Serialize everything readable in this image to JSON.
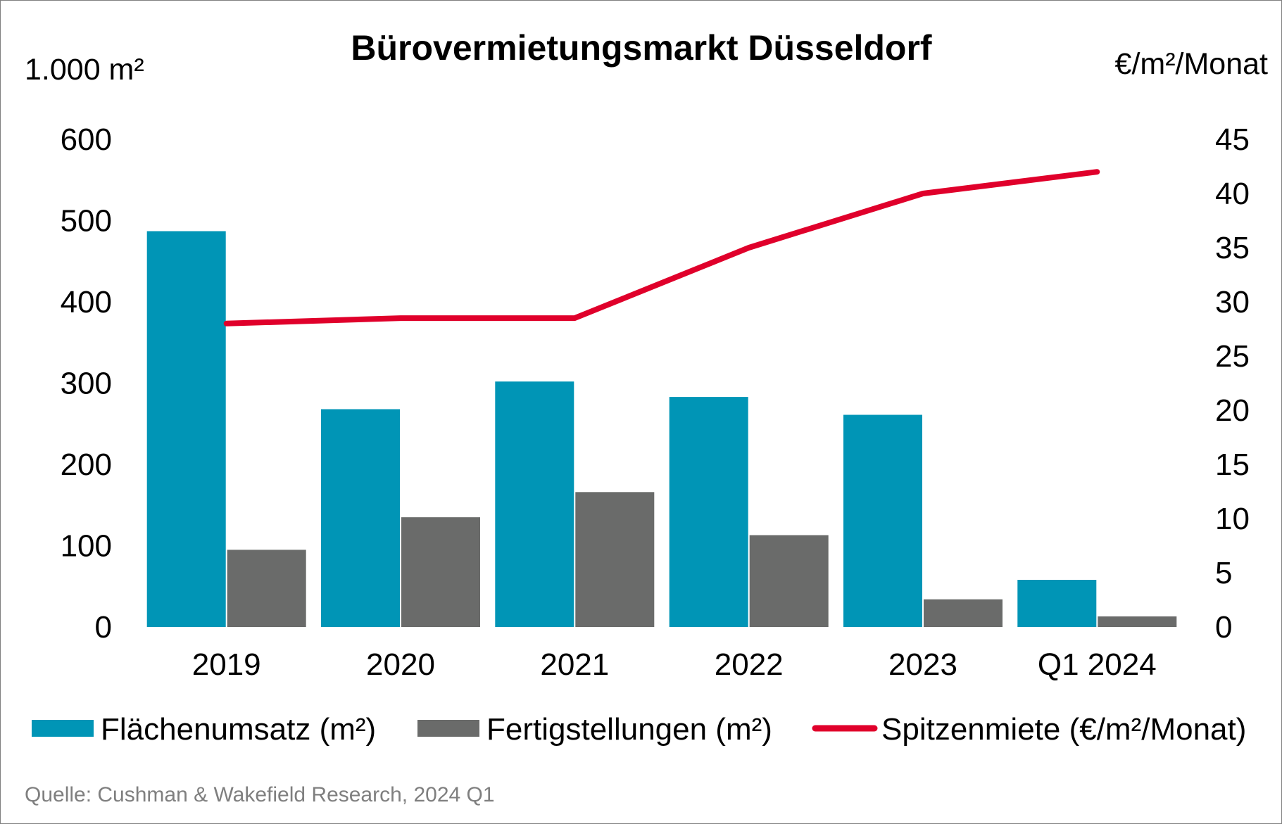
{
  "chart_data": {
    "type": "bar",
    "title": "Bürovermietungsmarkt Düsseldorf",
    "ylabel": "1.000 m²",
    "y2label": "€/m²/Monat",
    "categories": [
      "2019",
      "2020",
      "2021",
      "2022",
      "2023",
      "Q1 2024"
    ],
    "ylim": [
      0,
      600
    ],
    "yticks": [
      "0",
      "100",
      "200",
      "300",
      "400",
      "500",
      "600"
    ],
    "y2lim": [
      0,
      45
    ],
    "y2ticks": [
      "0",
      "5",
      "10",
      "15",
      "20",
      "25",
      "30",
      "35",
      "40",
      "45"
    ],
    "grid": false,
    "legend_position": "bottom",
    "series": [
      {
        "name": "Flächenumsatz (m²)",
        "type": "bar",
        "axis": "left",
        "color": "#0095b6",
        "values": [
          487,
          268,
          302,
          283,
          261,
          58
        ]
      },
      {
        "name": "Fertigstellungen (m²)",
        "type": "bar",
        "axis": "left",
        "color": "#6a6b6a",
        "values": [
          95,
          135,
          166,
          113,
          34,
          13
        ]
      },
      {
        "name": "Spitzenmiete (€/m²/Monat)",
        "type": "line",
        "axis": "right",
        "color": "#e0002b",
        "values": [
          28,
          28.5,
          28.5,
          35,
          40,
          42
        ]
      }
    ],
    "source": "Quelle: Cushman & Wakefield Research, 2024 Q1"
  }
}
